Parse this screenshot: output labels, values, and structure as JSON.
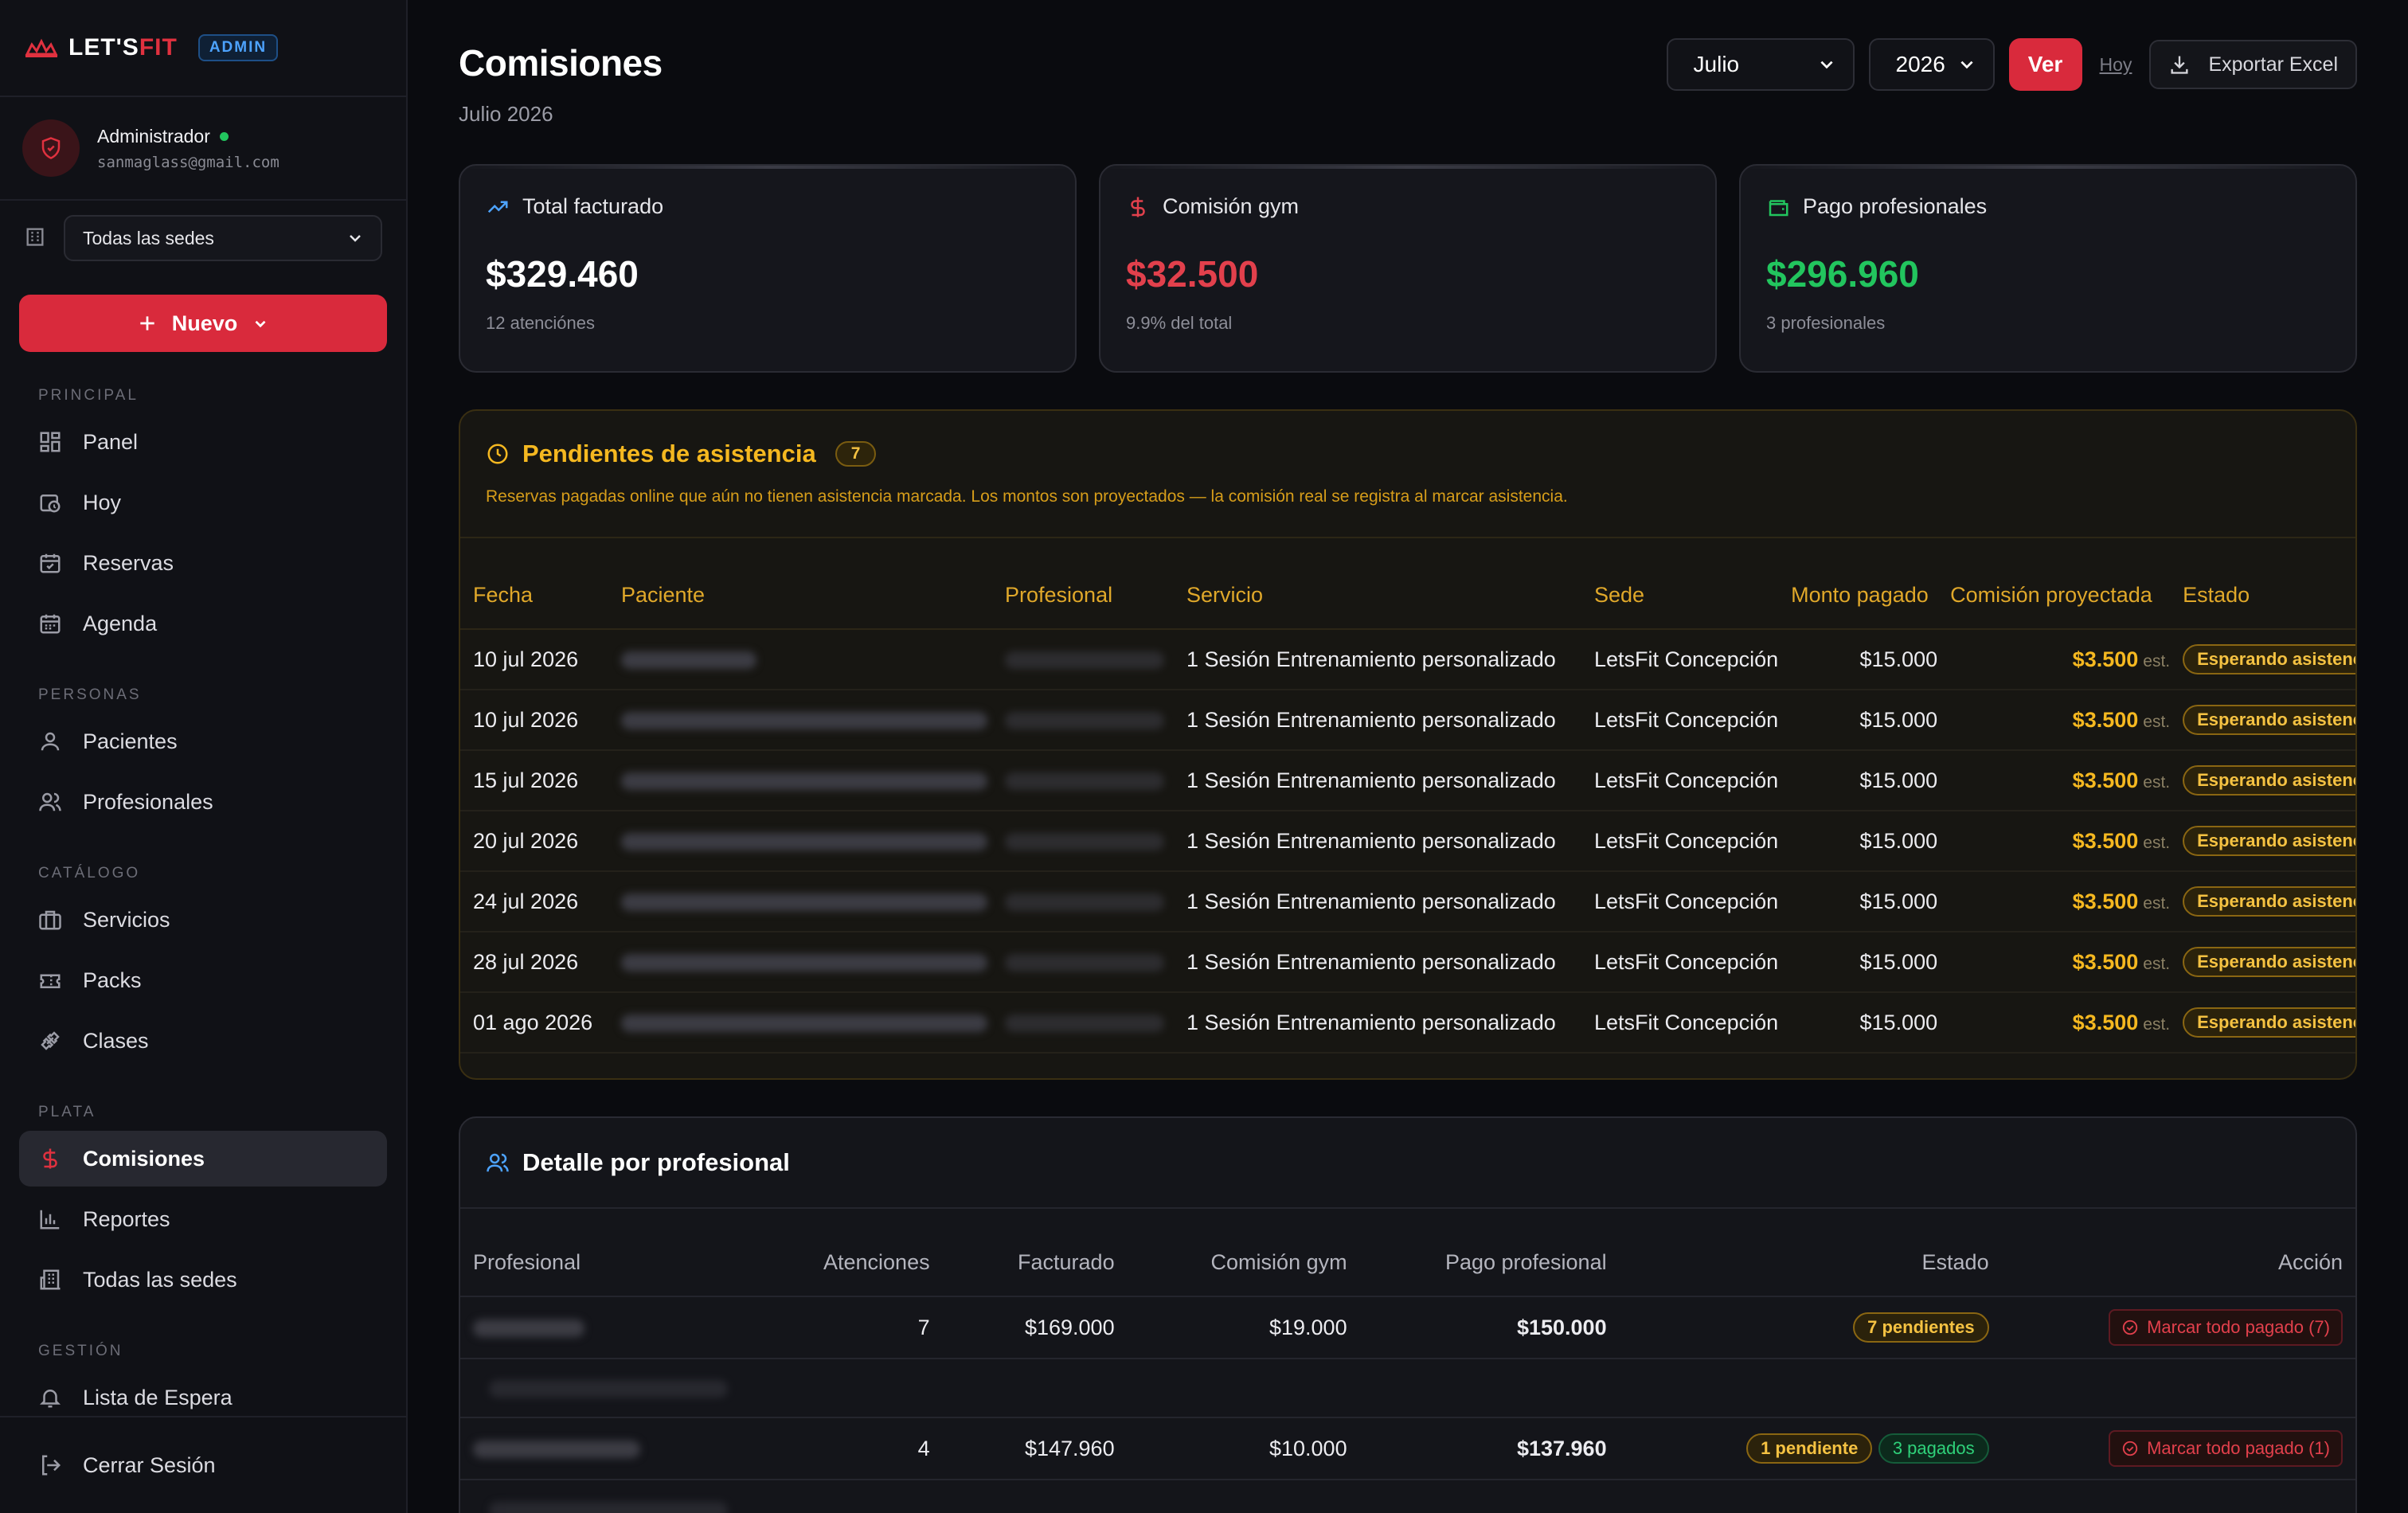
{
  "brand": {
    "name_a": "LET'S",
    "name_b": "FIT",
    "badge": "ADMIN"
  },
  "user": {
    "name": "Administrador",
    "email": "sanmaglass@gmail.com"
  },
  "sede_select": "Todas las sedes",
  "new_button": "Nuevo",
  "sections": {
    "principal": "PRINCIPAL",
    "personas": "PERSONAS",
    "catalogo": "CATÁLOGO",
    "plata": "PLATA",
    "gestion": "GESTIÓN"
  },
  "nav": {
    "panel": "Panel",
    "hoy": "Hoy",
    "reservas": "Reservas",
    "agenda": "Agenda",
    "pacientes": "Pacientes",
    "profesionales": "Profesionales",
    "servicios": "Servicios",
    "packs": "Packs",
    "clases": "Clases",
    "comisiones": "Comisiones",
    "reportes": "Reportes",
    "todas_sedes": "Todas las sedes",
    "lista_espera": "Lista de Espera"
  },
  "logout": "Cerrar Sesión",
  "page": {
    "title": "Comisiones",
    "subtitle": "Julio 2026"
  },
  "controls": {
    "month": "Julio",
    "year": "2026",
    "ver": "Ver",
    "hoy": "Hoy",
    "export": "Exportar Excel"
  },
  "cards": [
    {
      "label": "Total facturado",
      "value": "$329.460",
      "note": "12 atenciónes",
      "color": "#ffffff",
      "icon": "trending-up-icon"
    },
    {
      "label": "Comisión gym",
      "value": "$32.500",
      "note": "9.9% del total",
      "color": "#e2404c",
      "icon": "dollar-icon"
    },
    {
      "label": "Pago profesionales",
      "value": "$296.960",
      "note": "3 profesionales",
      "color": "#22c55e",
      "icon": "wallet-icon"
    }
  ],
  "pending": {
    "title": "Pendientes de asistencia",
    "count": "7",
    "description": "Reservas pagadas online que aún no tienen asistencia marcada. Los montos son proyectados — la comisión real se registra al marcar asistencia.",
    "columns": [
      "Fecha",
      "Paciente",
      "Profesional",
      "Servicio",
      "Sede",
      "Monto pagado",
      "Comisión proyectada",
      "Estado"
    ],
    "rows": [
      {
        "fecha": "10 jul 2026",
        "servicio": "1 Sesión Entrenamiento personalizado",
        "sede": "LetsFit Concepción",
        "monto": "$15.000",
        "comision": "$3.500",
        "est": "est.",
        "estado": "Esperando asistencia"
      },
      {
        "fecha": "10 jul 2026",
        "servicio": "1 Sesión Entrenamiento personalizado",
        "sede": "LetsFit Concepción",
        "monto": "$15.000",
        "comision": "$3.500",
        "est": "est.",
        "estado": "Esperando asistencia"
      },
      {
        "fecha": "15 jul 2026",
        "servicio": "1 Sesión Entrenamiento personalizado",
        "sede": "LetsFit Concepción",
        "monto": "$15.000",
        "comision": "$3.500",
        "est": "est.",
        "estado": "Esperando asistencia"
      },
      {
        "fecha": "20 jul 2026",
        "servicio": "1 Sesión Entrenamiento personalizado",
        "sede": "LetsFit Concepción",
        "monto": "$15.000",
        "comision": "$3.500",
        "est": "est.",
        "estado": "Esperando asistencia"
      },
      {
        "fecha": "24 jul 2026",
        "servicio": "1 Sesión Entrenamiento personalizado",
        "sede": "LetsFit Concepción",
        "monto": "$15.000",
        "comision": "$3.500",
        "est": "est.",
        "estado": "Esperando asistencia"
      },
      {
        "fecha": "28 jul 2026",
        "servicio": "1 Sesión Entrenamiento personalizado",
        "sede": "LetsFit Concepción",
        "monto": "$15.000",
        "comision": "$3.500",
        "est": "est.",
        "estado": "Esperando asistencia"
      },
      {
        "fecha": "01 ago 2026",
        "servicio": "1 Sesión Entrenamiento personalizado",
        "sede": "LetsFit Concepción",
        "monto": "$15.000",
        "comision": "$3.500",
        "est": "est.",
        "estado": "Esperando asistencia"
      }
    ]
  },
  "detail": {
    "title": "Detalle por profesional",
    "columns": [
      "Profesional",
      "Atenciones",
      "Facturado",
      "Comisión gym",
      "Pago profesional",
      "Estado",
      "Acción"
    ],
    "rows": [
      {
        "atenciones": "7",
        "facturado": "$169.000",
        "comision": "$19.000",
        "pago": "$150.000",
        "pill1": "7 pendientes",
        "pill2": "",
        "accion": "Marcar todo pagado (7)"
      },
      {
        "atenciones": "4",
        "facturado": "$147.960",
        "comision": "$10.000",
        "pago": "$137.960",
        "pill1": "1 pendiente",
        "pill2": "3 pagados",
        "accion": "Marcar todo pagado (1)"
      }
    ]
  }
}
